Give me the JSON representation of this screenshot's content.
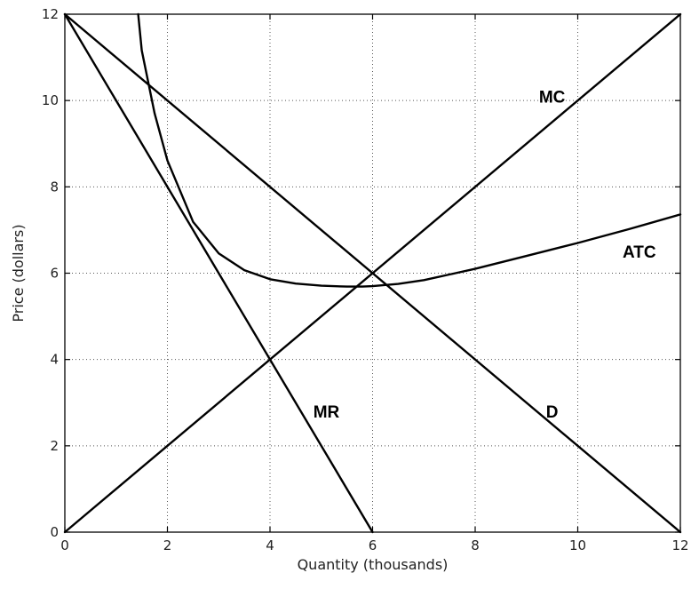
{
  "chart_data": {
    "type": "line",
    "title": "",
    "xlabel": "Quantity (thousands)",
    "ylabel": "Price (dollars)",
    "xlim": [
      0,
      12
    ],
    "ylim": [
      0,
      12
    ],
    "xticks": [
      0,
      2,
      4,
      6,
      8,
      10,
      12
    ],
    "yticks": [
      0,
      2,
      4,
      6,
      8,
      10,
      12
    ],
    "grid": true,
    "line_color": "#000000",
    "series": [
      {
        "name": "D",
        "x": [
          0,
          12
        ],
        "y": [
          12,
          0
        ]
      },
      {
        "name": "MR",
        "x": [
          0,
          6
        ],
        "y": [
          12,
          0
        ]
      },
      {
        "name": "MC",
        "x": [
          0,
          12
        ],
        "y": [
          0,
          12
        ]
      },
      {
        "name": "ATC",
        "x": [
          1.43,
          1.5,
          1.75,
          2,
          2.5,
          3,
          3.5,
          4,
          4.5,
          5,
          5.5,
          5.8,
          6,
          6.5,
          7,
          8,
          9,
          10,
          11,
          12
        ],
        "y": [
          12,
          11.16,
          9.7,
          8.61,
          7.19,
          6.46,
          6.07,
          5.86,
          5.76,
          5.71,
          5.69,
          5.69,
          5.7,
          5.75,
          5.84,
          6.1,
          6.4,
          6.7,
          7.02,
          7.36
        ]
      }
    ],
    "annotations": [
      {
        "text": "MC",
        "x": 9.5,
        "y": 10.1
      },
      {
        "text": "ATC",
        "x": 11.2,
        "y": 6.5
      },
      {
        "text": "MR",
        "x": 5.1,
        "y": 2.8
      },
      {
        "text": "D",
        "x": 9.5,
        "y": 2.8
      }
    ]
  }
}
